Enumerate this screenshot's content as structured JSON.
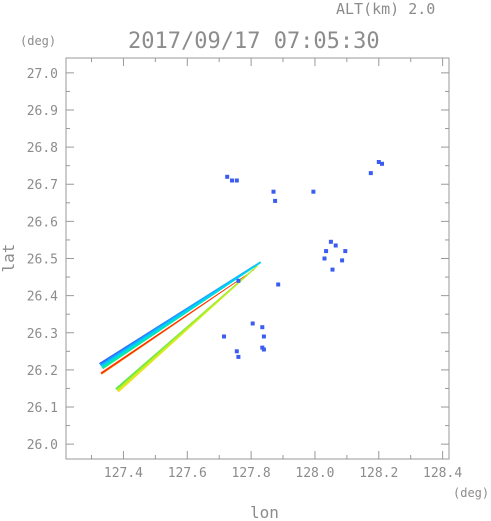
{
  "chart_data": {
    "type": "scatter",
    "title": "2017/09/17 07:05:30",
    "subtitle": "ALT(km) 2.0",
    "xlabel": "lon",
    "ylabel": "lat",
    "x_unit": "(deg)",
    "y_unit": "(deg)",
    "xlim": [
      127.22,
      128.42
    ],
    "ylim": [
      25.96,
      27.04
    ],
    "x_ticks": [
      "127.4",
      "127.6",
      "127.8",
      "128.0",
      "128.2",
      "128.4"
    ],
    "y_ticks": [
      "26.0",
      "26.1",
      "26.2",
      "26.3",
      "26.4",
      "26.5",
      "26.6",
      "26.7",
      "26.8",
      "26.9",
      "27.0"
    ],
    "grid": false,
    "colors": {
      "axis": "#999999",
      "text": "#8c8c8c",
      "echo_blue": "#3a5cf0",
      "band_gradient": [
        "#2e5cff",
        "#00c8ff",
        "#00e0a0",
        "#40e040",
        "#d8f020",
        "#ff3010"
      ]
    },
    "streaks": [
      {
        "from": [
          127.33,
          26.21
        ],
        "to": [
          127.83,
          26.49
        ],
        "width_deg": 0.02,
        "palette": "cold"
      },
      {
        "from": [
          127.33,
          26.19
        ],
        "to": [
          127.81,
          26.47
        ],
        "width_deg": 0.005,
        "palette": "red"
      },
      {
        "from": [
          127.38,
          26.145
        ],
        "to": [
          127.82,
          26.48
        ],
        "width_deg": 0.014,
        "palette": "warm"
      }
    ],
    "echoes": [
      {
        "lon": 127.74,
        "lat": 26.71
      },
      {
        "lon": 127.755,
        "lat": 26.71
      },
      {
        "lon": 127.725,
        "lat": 26.72
      },
      {
        "lon": 127.87,
        "lat": 26.68
      },
      {
        "lon": 127.875,
        "lat": 26.655
      },
      {
        "lon": 127.995,
        "lat": 26.68
      },
      {
        "lon": 128.2,
        "lat": 26.76
      },
      {
        "lon": 128.21,
        "lat": 26.755
      },
      {
        "lon": 128.175,
        "lat": 26.73
      },
      {
        "lon": 128.05,
        "lat": 26.545
      },
      {
        "lon": 128.065,
        "lat": 26.535
      },
      {
        "lon": 128.035,
        "lat": 26.52
      },
      {
        "lon": 128.095,
        "lat": 26.52
      },
      {
        "lon": 128.085,
        "lat": 26.495
      },
      {
        "lon": 128.03,
        "lat": 26.5
      },
      {
        "lon": 128.055,
        "lat": 26.47
      },
      {
        "lon": 127.885,
        "lat": 26.43
      },
      {
        "lon": 127.76,
        "lat": 26.44
      },
      {
        "lon": 127.805,
        "lat": 26.325
      },
      {
        "lon": 127.835,
        "lat": 26.315
      },
      {
        "lon": 127.84,
        "lat": 26.29
      },
      {
        "lon": 127.715,
        "lat": 26.29
      },
      {
        "lon": 127.755,
        "lat": 26.25
      },
      {
        "lon": 127.76,
        "lat": 26.235
      },
      {
        "lon": 127.84,
        "lat": 26.255
      },
      {
        "lon": 127.835,
        "lat": 26.26
      }
    ]
  }
}
